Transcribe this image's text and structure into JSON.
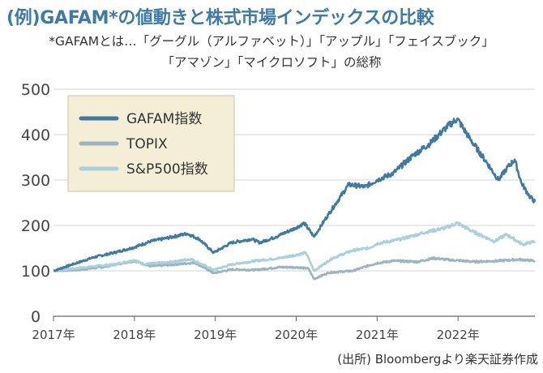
{
  "title": "(例)GAFAM*の値動きと株式市場インデックスの比較",
  "subtitle_lines": [
    "*GAFAMとは…「グーグル（アルファベット）」「アップル」「フェイスブック」",
    "「アマゾン」「マイクロソフト」の総称"
  ],
  "source": "(出所) Bloombergより楽天証券作成",
  "chart_data": {
    "type": "line",
    "ylim": [
      0,
      500
    ],
    "yticks": [
      0,
      100,
      200,
      300,
      400,
      500
    ],
    "xlim": [
      2017,
      2022.95
    ],
    "xticks": [
      {
        "value": 2017,
        "label": "2017年"
      },
      {
        "value": 2018,
        "label": "2018年"
      },
      {
        "value": 2019,
        "label": "2019年"
      },
      {
        "value": 2020,
        "label": "2020年"
      },
      {
        "value": 2021,
        "label": "2021年"
      },
      {
        "value": 2022,
        "label": "2022年"
      }
    ],
    "legend_position": "top-left",
    "series": [
      {
        "name": "GAFAM指数",
        "color": "#3f7aa3",
        "points": [
          [
            2017.0,
            100
          ],
          [
            2017.25,
            115
          ],
          [
            2017.5,
            130
          ],
          [
            2017.75,
            140
          ],
          [
            2018.0,
            152
          ],
          [
            2018.2,
            165
          ],
          [
            2018.4,
            172
          ],
          [
            2018.65,
            182
          ],
          [
            2018.8,
            170
          ],
          [
            2018.98,
            140
          ],
          [
            2019.2,
            162
          ],
          [
            2019.45,
            170
          ],
          [
            2019.55,
            162
          ],
          [
            2019.75,
            175
          ],
          [
            2020.0,
            195
          ],
          [
            2020.1,
            205
          ],
          [
            2020.22,
            175
          ],
          [
            2020.4,
            225
          ],
          [
            2020.65,
            290
          ],
          [
            2020.85,
            285
          ],
          [
            2021.0,
            300
          ],
          [
            2021.2,
            315
          ],
          [
            2021.45,
            355
          ],
          [
            2021.65,
            380
          ],
          [
            2021.85,
            415
          ],
          [
            2021.99,
            435
          ],
          [
            2022.15,
            390
          ],
          [
            2022.35,
            340
          ],
          [
            2022.5,
            300
          ],
          [
            2022.6,
            325
          ],
          [
            2022.7,
            345
          ],
          [
            2022.78,
            295
          ],
          [
            2022.88,
            265
          ],
          [
            2022.95,
            252
          ]
        ]
      },
      {
        "name": "TOPIX",
        "color": "#9ab4c0",
        "points": [
          [
            2017.0,
            100
          ],
          [
            2017.3,
            102
          ],
          [
            2017.6,
            108
          ],
          [
            2017.85,
            117
          ],
          [
            2018.0,
            122
          ],
          [
            2018.2,
            110
          ],
          [
            2018.5,
            114
          ],
          [
            2018.75,
            118
          ],
          [
            2018.98,
            95
          ],
          [
            2019.2,
            103
          ],
          [
            2019.5,
            102
          ],
          [
            2019.8,
            108
          ],
          [
            2020.0,
            108
          ],
          [
            2020.15,
            105
          ],
          [
            2020.22,
            82
          ],
          [
            2020.4,
            96
          ],
          [
            2020.7,
            100
          ],
          [
            2020.9,
            112
          ],
          [
            2021.0,
            117
          ],
          [
            2021.2,
            122
          ],
          [
            2021.5,
            120
          ],
          [
            2021.7,
            128
          ],
          [
            2021.9,
            124
          ],
          [
            2022.2,
            120
          ],
          [
            2022.5,
            122
          ],
          [
            2022.75,
            125
          ],
          [
            2022.95,
            122
          ]
        ]
      },
      {
        "name": "S&P500指数",
        "color": "#a9d0dc",
        "points": [
          [
            2017.0,
            100
          ],
          [
            2017.25,
            105
          ],
          [
            2017.5,
            110
          ],
          [
            2017.75,
            114
          ],
          [
            2018.0,
            124
          ],
          [
            2018.1,
            115
          ],
          [
            2018.4,
            118
          ],
          [
            2018.7,
            126
          ],
          [
            2018.98,
            102
          ],
          [
            2019.2,
            114
          ],
          [
            2019.5,
            122
          ],
          [
            2019.8,
            128
          ],
          [
            2020.0,
            135
          ],
          [
            2020.12,
            140
          ],
          [
            2020.22,
            100
          ],
          [
            2020.45,
            128
          ],
          [
            2020.7,
            145
          ],
          [
            2020.9,
            150
          ],
          [
            2021.0,
            160
          ],
          [
            2021.3,
            170
          ],
          [
            2021.6,
            185
          ],
          [
            2021.85,
            195
          ],
          [
            2021.99,
            205
          ],
          [
            2022.2,
            185
          ],
          [
            2022.45,
            165
          ],
          [
            2022.6,
            180
          ],
          [
            2022.8,
            158
          ],
          [
            2022.95,
            165
          ]
        ]
      }
    ]
  }
}
